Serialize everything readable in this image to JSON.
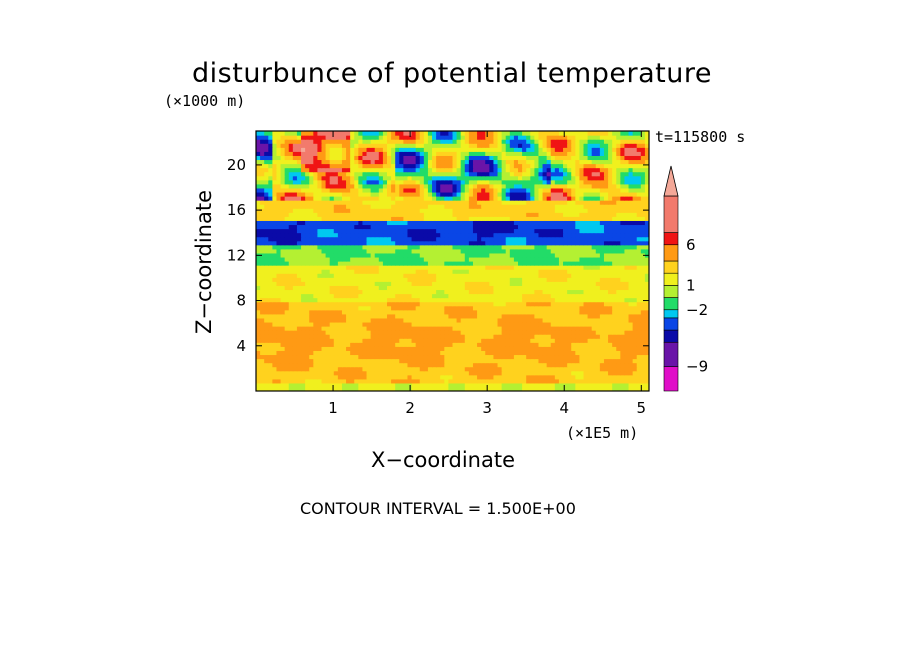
{
  "chart_data": {
    "type": "heatmap",
    "title": "disturbunce of potential temperature",
    "xlabel": "X−coordinate",
    "ylabel": "Z−coordinate",
    "x_unit": "(×1E5 m)",
    "y_unit": "(×1000 m)",
    "time_label": "t=115800 s",
    "footer": "CONTOUR INTERVAL = 1.500E+00",
    "xlim": [
      0,
      5.1
    ],
    "ylim": [
      0,
      23
    ],
    "x_ticks": [
      1,
      2,
      3,
      4,
      5
    ],
    "x_tick_labels": [
      "1",
      "2",
      "3",
      "4",
      "5"
    ],
    "y_ticks": [
      4,
      8,
      12,
      16,
      20
    ],
    "y_tick_labels": [
      "4",
      "8",
      "12",
      "16",
      "20"
    ],
    "colorbar": {
      "levels": [
        -12,
        -9,
        -6,
        -4.5,
        -3,
        -2,
        -0.5,
        1,
        2.5,
        4,
        6,
        7.5,
        12
      ],
      "colors": [
        "#e00ec8",
        "#6a14a8",
        "#0a0aa8",
        "#0a46e6",
        "#00c8f0",
        "#22dc68",
        "#b4f032",
        "#f0f01e",
        "#ffd21e",
        "#ff9a14",
        "#f01414",
        "#f27a6c"
      ],
      "extend_top_color": "#f4a898",
      "tick_labels": [
        "6",
        "1",
        "−2",
        "−9"
      ],
      "tick_values": [
        6,
        1,
        -2,
        -9
      ]
    },
    "bands": [
      {
        "z_range": [
          0,
          0.6
        ],
        "dominant_value": 1.5,
        "description_level": "yellow-green"
      },
      {
        "z_range": [
          0.6,
          8
        ],
        "dominant_value": 3.5,
        "description_level": "orange-yellow"
      },
      {
        "z_range": [
          8,
          11
        ],
        "dominant_value": 2.0,
        "description_level": "yellow"
      },
      {
        "z_range": [
          11,
          13
        ],
        "dominant_value": -0.5,
        "description_level": "green"
      },
      {
        "z_range": [
          13,
          15
        ],
        "dominant_value": -3.5,
        "description_level": "cyan-blue"
      },
      {
        "z_range": [
          15,
          18.5
        ],
        "dominant_value": 3.0,
        "description_level": "orange"
      },
      {
        "z_range": [
          18.5,
          23
        ],
        "dominant_value": 2.0,
        "description_level": "mixed"
      }
    ]
  }
}
